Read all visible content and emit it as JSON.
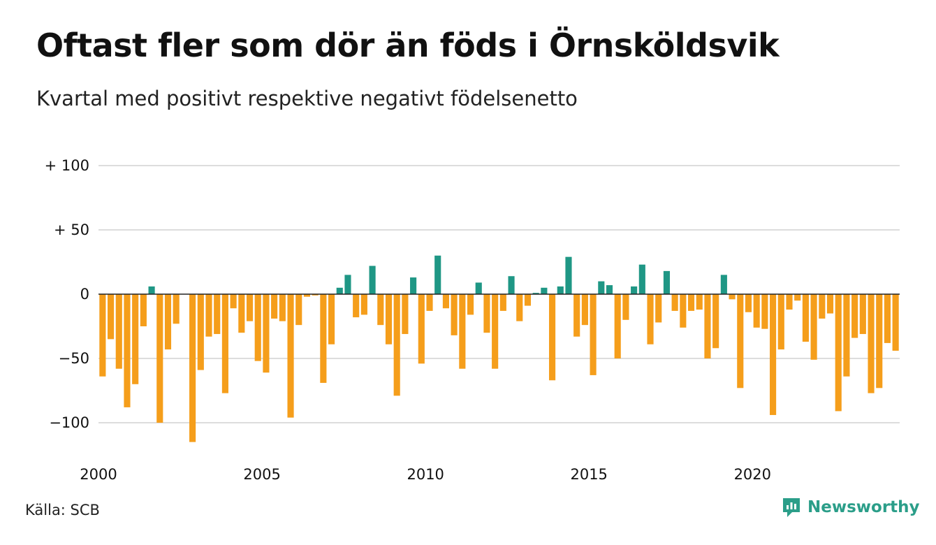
{
  "header": {
    "title": "Oftast fler som dör än föds i Örnsköldsvik",
    "subtitle": "Kvartal med positivt respektive negativt födelsenetto"
  },
  "footer": {
    "source": "Källa: SCB",
    "brand": "Newsworthy",
    "brand_icon": "newsworthy-logo-icon"
  },
  "colors": {
    "positive": "#1f9785",
    "negative": "#f59e1b",
    "grid": "#dddddd",
    "zero_line": "#222222",
    "brand": "#2b9e89"
  },
  "chart_data": {
    "type": "bar",
    "title": "Oftast fler som dör än föds i Örnsköldsvik",
    "subtitle": "Kvartal med positivt respektive negativt födelsenetto",
    "xlabel": "",
    "ylabel": "",
    "x_axis": {
      "type": "quarterly",
      "start_year": 2000,
      "tick_values": [
        2000,
        2005,
        2010,
        2015,
        2020
      ],
      "tick_labels": [
        "2000",
        "2005",
        "2010",
        "2015",
        "2020"
      ]
    },
    "y_axis": {
      "ylim": [
        -120,
        100
      ],
      "tick_values": [
        100,
        50,
        0,
        -50,
        -100
      ],
      "tick_labels": [
        "+ 100",
        "+  50",
        "0",
        "−50",
        "−100"
      ]
    },
    "grid": true,
    "legend": "none",
    "values": [
      -64,
      -35,
      -58,
      -88,
      -70,
      -25,
      6,
      -100,
      -43,
      -23,
      0,
      -115,
      -59,
      -33,
      -31,
      -77,
      -11,
      -30,
      -21,
      -52,
      -61,
      -19,
      -21,
      -96,
      -24,
      -2,
      -1,
      -69,
      -39,
      5,
      15,
      -18,
      -16,
      22,
      -24,
      -39,
      -79,
      -31,
      13,
      -54,
      -13,
      30,
      -11,
      -32,
      -58,
      -16,
      9,
      -30,
      -58,
      -13,
      14,
      -21,
      -9,
      1,
      5,
      -67,
      6,
      29,
      -33,
      -24,
      -63,
      10,
      7,
      -50,
      -20,
      6,
      23,
      -39,
      -22,
      18,
      -13,
      -26,
      -13,
      -12,
      -50,
      -42,
      15,
      -4,
      -73,
      -14,
      -26,
      -27,
      -94,
      -43,
      -12,
      -5,
      -37,
      -51,
      -19,
      -15,
      -91,
      -64,
      -34,
      -31,
      -77,
      -73,
      -38,
      -44
    ]
  }
}
